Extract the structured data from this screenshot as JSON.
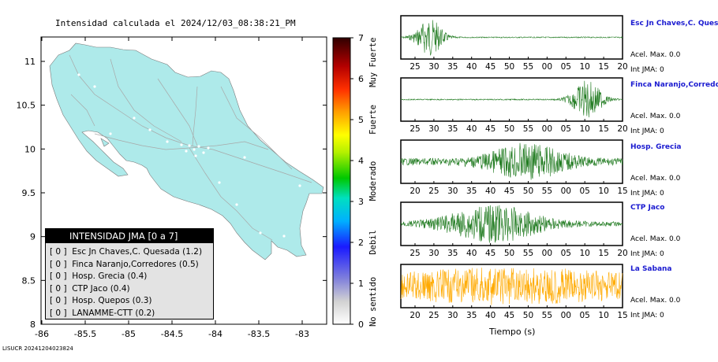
{
  "title": "Intensidad calculada el 2024/12/03_08:38:21_PM",
  "footer": "LISUCR 20241204023824",
  "colors": {
    "land": "#aeeaea",
    "roads": "#a8a8a8",
    "trace_default": "#1f7a1f",
    "trace_highlight": "#ffaa00",
    "station_name": "#1a1ad0"
  },
  "map": {
    "x_ticks": [
      "-86",
      "-85.5",
      "-85",
      "-84.5",
      "-84",
      "-83.5",
      "-83"
    ],
    "y_ticks": [
      "11",
      "10.5",
      "10",
      "9.5",
      "9",
      "8.5",
      "8"
    ]
  },
  "colorbar": {
    "ticks": [
      "0",
      "1",
      "2",
      "3",
      "4",
      "5",
      "6",
      "7"
    ],
    "labels": [
      "No sentido",
      "Debil",
      "Moderado",
      "Fuerte",
      "Muy Fuerte"
    ]
  },
  "legend": {
    "title": "INTENSIDAD JMA [0 a 7]",
    "items": [
      "[ 0 ]  Esc Jn Chaves,C. Quesada (1.2)",
      "[ 0 ]  Finca Naranjo,Corredores (0.5)",
      "[ 0 ]  Hosp. Grecia (0.4)",
      "[ 0 ]  CTP Jaco (0.4)",
      "[ 0 ]  Hosp. Quepos (0.3)",
      "[ 0 ]  LANAMME-CTT (0.2)"
    ]
  },
  "xlabel": "Tiempo (s)",
  "stations": [
    {
      "name": "Esc Jn Chaves,C. Ques",
      "accel": "Acel. Max. 0.0",
      "jma": "Int JMA: 0",
      "ticks": [
        "25",
        "30",
        "35",
        "40",
        "45",
        "50",
        "55",
        "00",
        "05",
        "10",
        "15",
        "20"
      ],
      "burst": 0.13,
      "width": 0.06,
      "noise": 0.03
    },
    {
      "name": "Finca Naranjo,Corredor",
      "accel": "Acel. Max. 0.0",
      "jma": "Int JMA: 0",
      "ticks": [
        "25",
        "30",
        "35",
        "40",
        "45",
        "50",
        "55",
        "00",
        "05",
        "10",
        "15",
        "20"
      ],
      "burst": 0.84,
      "width": 0.07,
      "noise": 0.03
    },
    {
      "name": "Hosp. Grecia",
      "accel": "Acel. Max. 0.0",
      "jma": "Int JMA: 0",
      "ticks": [
        "20",
        "25",
        "30",
        "35",
        "40",
        "45",
        "50",
        "55",
        "00",
        "05",
        "10",
        "15"
      ],
      "burst": 0.57,
      "width": 0.18,
      "noise": 0.18
    },
    {
      "name": "CTP Jaco",
      "accel": "Acel. Max. 0.0",
      "jma": "Int JMA: 0",
      "ticks": [
        "25",
        "30",
        "35",
        "40",
        "45",
        "50",
        "55",
        "00",
        "05",
        "10",
        "15",
        "20"
      ],
      "burst": 0.42,
      "width": 0.22,
      "noise": 0.12
    },
    {
      "name": "La Sabana",
      "accel": "Acel. Max. 0.0",
      "jma": "Int JMA: 0",
      "ticks": [
        "20",
        "25",
        "30",
        "35",
        "40",
        "45",
        "50",
        "55",
        "00",
        "05",
        "10",
        "15"
      ],
      "burst": 0.5,
      "width": 0.5,
      "noise": 0.6,
      "highlight": true
    }
  ]
}
